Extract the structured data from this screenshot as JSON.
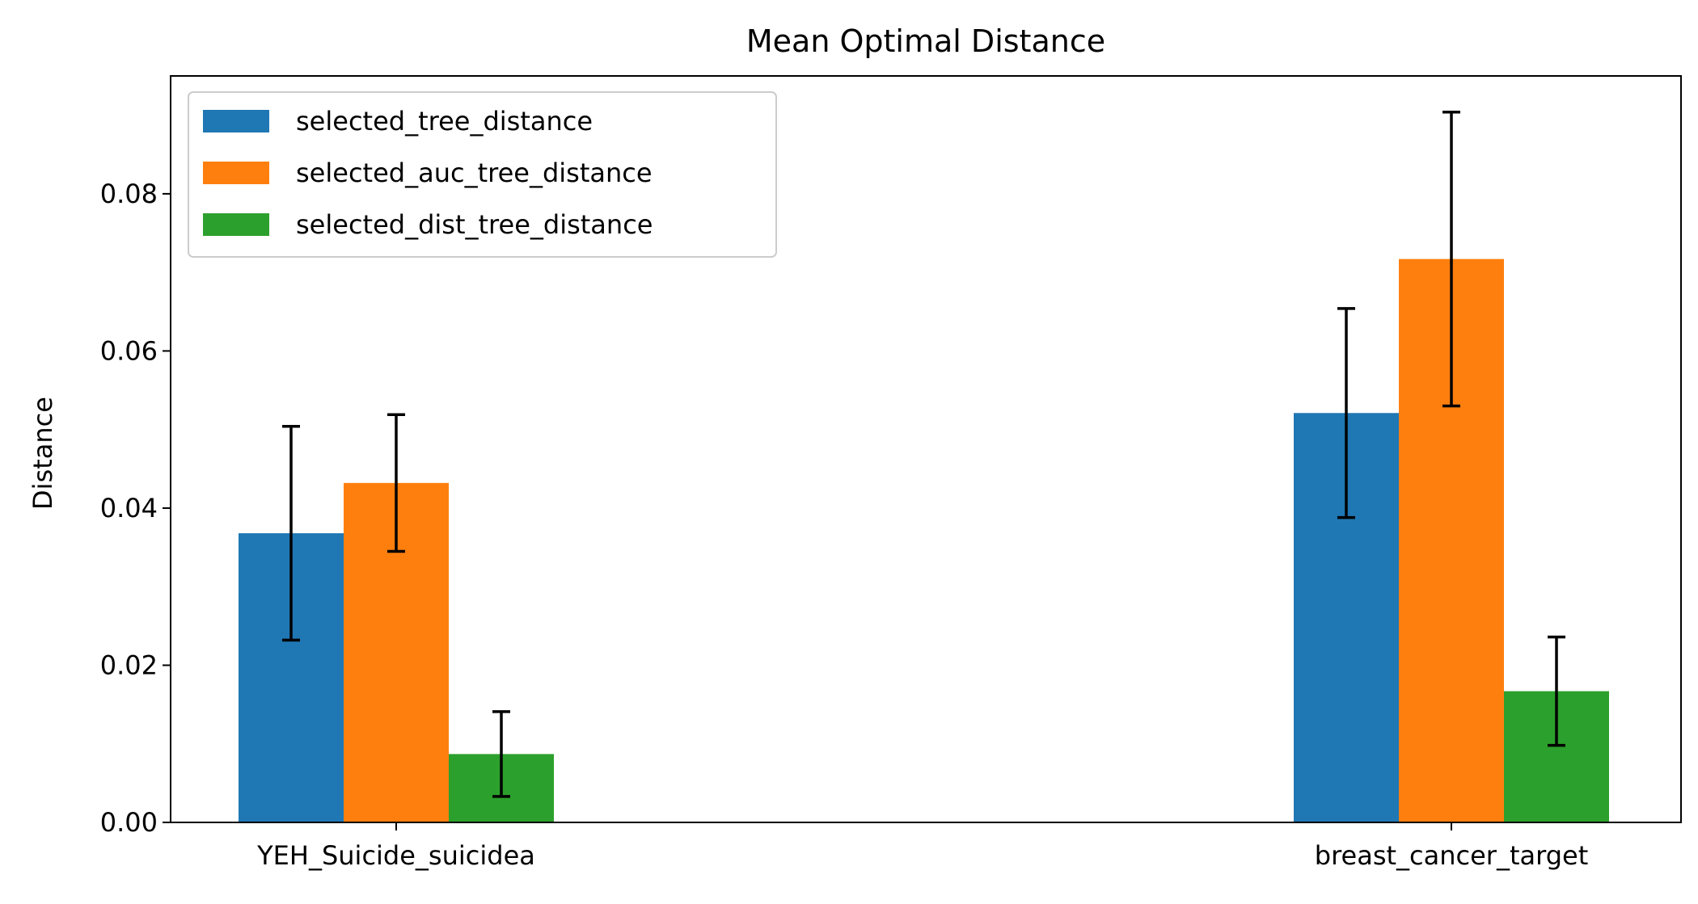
{
  "chart_data": {
    "type": "bar",
    "title": "Mean Optimal Distance",
    "xlabel": "",
    "ylabel": "Distance",
    "ylim": [
      0,
      0.095
    ],
    "yticks": [
      0.0,
      0.02,
      0.04,
      0.06,
      0.08
    ],
    "ytick_labels": [
      "0.00",
      "0.02",
      "0.04",
      "0.06",
      "0.08"
    ],
    "categories": [
      "YEH_Suicide_suicidea",
      "breast_cancer_target"
    ],
    "series": [
      {
        "name": "selected_tree_distance",
        "color": "#1f77b4",
        "values": [
          0.0368,
          0.0521
        ],
        "errors": [
          0.0136,
          0.0133
        ]
      },
      {
        "name": "selected_auc_tree_distance",
        "color": "#ff7f0e",
        "values": [
          0.0432,
          0.0717
        ],
        "errors": [
          0.0087,
          0.0187
        ]
      },
      {
        "name": "selected_dist_tree_distance",
        "color": "#2ca02c",
        "values": [
          0.0087,
          0.0167
        ],
        "errors": [
          0.0054,
          0.0069
        ]
      }
    ],
    "legend_position": "top-left",
    "grid": false
  }
}
